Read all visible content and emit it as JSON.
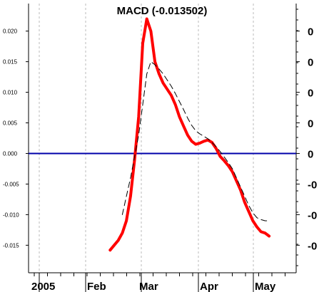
{
  "chart_data": {
    "type": "line",
    "title": "MACD (-0.013502)",
    "x_axis": {
      "labels": [
        "2005",
        "Feb",
        "Mar",
        "Apr",
        "May"
      ]
    },
    "y_axis": {
      "ticks": [
        "0.020",
        "0.015",
        "0.010",
        "0.005",
        "0.000",
        "-0.005",
        "-0.010",
        "-0.015"
      ],
      "ylim": [
        -0.0195,
        0.0245
      ]
    },
    "right_axis_labels": [
      "0",
      "0",
      "0",
      "0",
      "0",
      "-0",
      "-0",
      "-0"
    ],
    "zero_line": 0.0,
    "series": [
      {
        "style": "solid-thick-red",
        "color": "#ff0000",
        "x": [
          "2005-02-13",
          "2005-02-15",
          "2005-02-17",
          "2005-02-19",
          "2005-02-21",
          "2005-02-23",
          "2005-02-25",
          "2005-02-27",
          "2005-03-01",
          "2005-03-03",
          "2005-03-05",
          "2005-03-07",
          "2005-03-09",
          "2005-03-11",
          "2005-03-13",
          "2005-03-15",
          "2005-03-17",
          "2005-03-19",
          "2005-03-21",
          "2005-03-23",
          "2005-03-25",
          "2005-03-27",
          "2005-03-29",
          "2005-03-31",
          "2005-04-02",
          "2005-04-04",
          "2005-04-06",
          "2005-04-08",
          "2005-04-10",
          "2005-04-12",
          "2005-04-14",
          "2005-04-16",
          "2005-04-18",
          "2005-04-20",
          "2005-04-22",
          "2005-04-24",
          "2005-04-26",
          "2005-04-28",
          "2005-04-30",
          "2005-05-02"
        ],
        "y": [
          -0.0158,
          -0.015,
          -0.0142,
          -0.013,
          -0.011,
          -0.007,
          -0.001,
          0.006,
          0.018,
          0.022,
          0.02,
          0.015,
          0.013,
          0.0115,
          0.0105,
          0.0095,
          0.008,
          0.006,
          0.0045,
          0.003,
          0.002,
          0.0015,
          0.0017,
          0.002,
          0.0022,
          0.0018,
          0.0008,
          -0.0005,
          -0.0012,
          -0.002,
          -0.003,
          -0.0045,
          -0.006,
          -0.008,
          -0.0095,
          -0.011,
          -0.012,
          -0.0128,
          -0.013,
          -0.0135
        ]
      },
      {
        "style": "dashed-black",
        "color": "#000000",
        "x": [
          "2005-02-19",
          "2005-02-21",
          "2005-02-23",
          "2005-02-25",
          "2005-02-27",
          "2005-03-01",
          "2005-03-03",
          "2005-03-05",
          "2005-03-07",
          "2005-03-09",
          "2005-03-11",
          "2005-03-13",
          "2005-03-15",
          "2005-03-17",
          "2005-03-19",
          "2005-03-21",
          "2005-03-23",
          "2005-03-25",
          "2005-03-27",
          "2005-03-29",
          "2005-03-31",
          "2005-04-02",
          "2005-04-04",
          "2005-04-06",
          "2005-04-08",
          "2005-04-10",
          "2005-04-12",
          "2005-04-14",
          "2005-04-16",
          "2005-04-18",
          "2005-04-20",
          "2005-04-22",
          "2005-04-24",
          "2005-04-26",
          "2005-04-28",
          "2005-04-30",
          "2005-05-02"
        ],
        "y": [
          -0.01,
          -0.007,
          -0.004,
          -0.0005,
          0.003,
          0.008,
          0.013,
          0.015,
          0.0145,
          0.0138,
          0.013,
          0.012,
          0.011,
          0.0098,
          0.0085,
          0.0072,
          0.0058,
          0.0046,
          0.0037,
          0.0032,
          0.0028,
          0.0024,
          0.0018,
          0.0011,
          0.0003,
          -0.0006,
          -0.0015,
          -0.0025,
          -0.004,
          -0.0055,
          -0.007,
          -0.0085,
          -0.0097,
          -0.0105,
          -0.0108,
          -0.011,
          -0.011
        ]
      }
    ],
    "grid": true
  }
}
